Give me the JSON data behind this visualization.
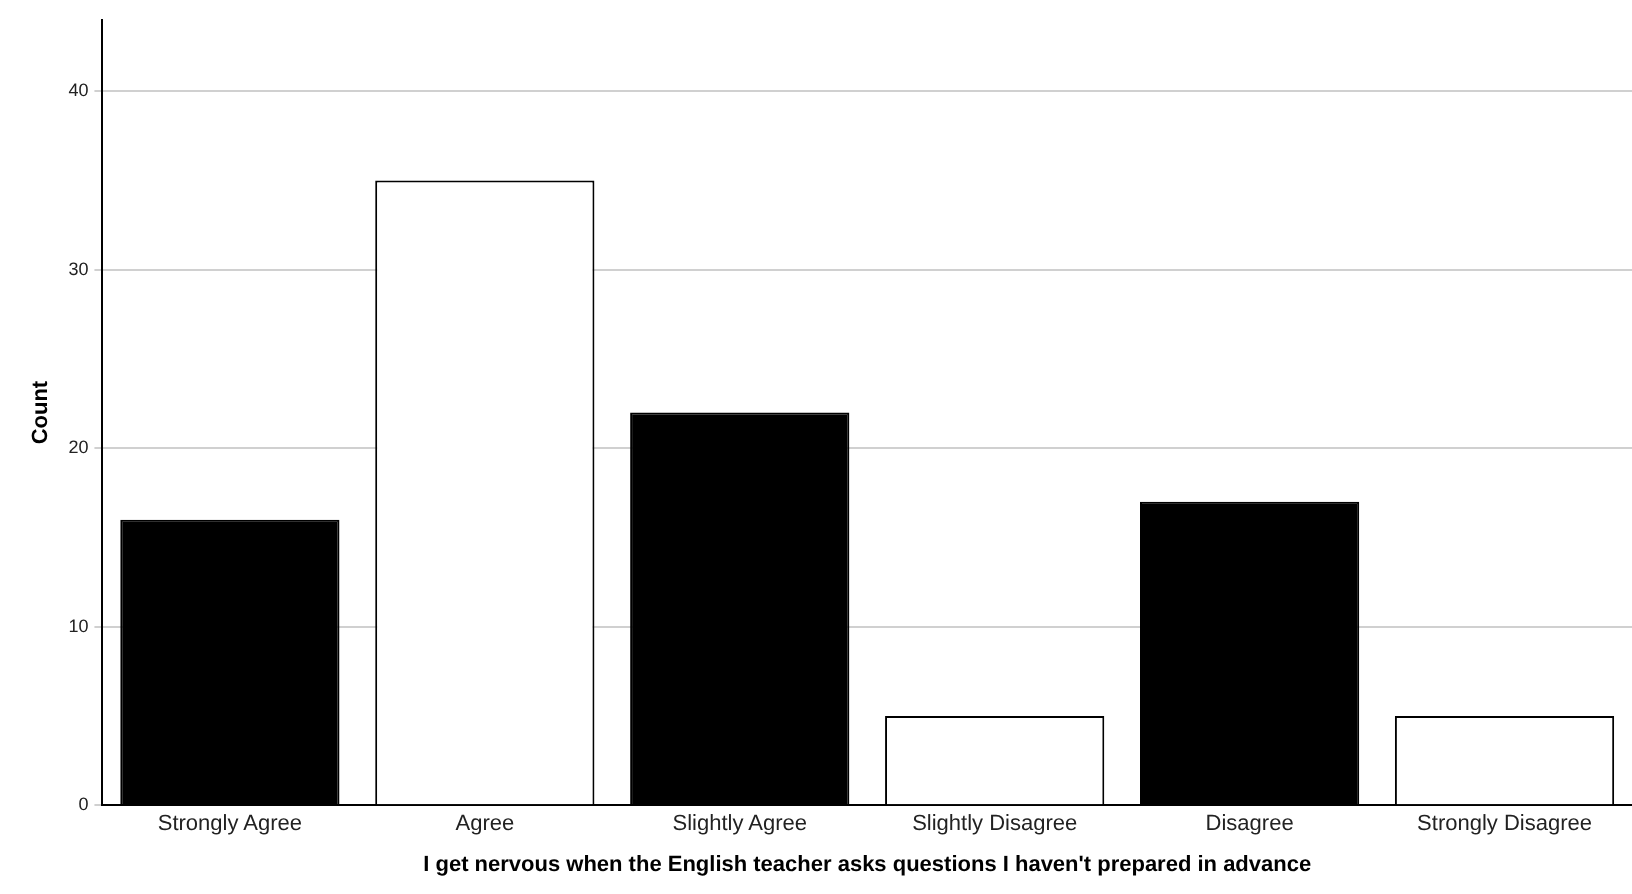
{
  "chart_data": {
    "type": "bar",
    "xlabel": "I get nervous when the English teacher asks questions I haven't prepared in advance",
    "ylabel": "Count",
    "categories": [
      "Strongly Agree",
      "Agree",
      "Slightly Agree",
      "Slightly Disagree",
      "Disagree",
      "Strongly Disagree"
    ],
    "values": [
      16,
      35,
      22,
      5,
      17,
      5
    ],
    "colors": [
      "#000000",
      "#ffffff",
      "#000000",
      "#ffffff",
      "#000000",
      "#ffffff"
    ],
    "ylim": [
      0,
      44
    ],
    "yticks": [
      0,
      10,
      20,
      30,
      40
    ],
    "grid": "y",
    "legend": false
  }
}
